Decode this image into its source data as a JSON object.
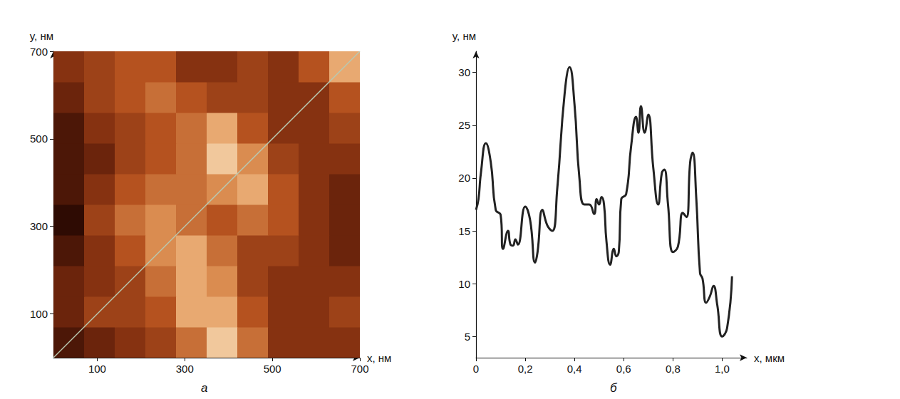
{
  "chart_data": [
    {
      "type": "heatmap",
      "panel_label": "а",
      "x_label": "x, нм",
      "y_label": "y, нм",
      "xlim": [
        0,
        700
      ],
      "ylim": [
        0,
        700
      ],
      "xticks": [
        100,
        300,
        500,
        700
      ],
      "yticks": [
        100,
        300,
        500,
        700
      ],
      "x": [
        35,
        105,
        175,
        245,
        315,
        385,
        455,
        525,
        595,
        665
      ],
      "y": [
        35,
        105,
        175,
        245,
        315,
        385,
        455,
        525,
        595,
        665
      ],
      "cells": [
        [
          1,
          2,
          3,
          4,
          6,
          9,
          6,
          3,
          3,
          3
        ],
        [
          2,
          4,
          4,
          5,
          8,
          8,
          5,
          3,
          3,
          4
        ],
        [
          2,
          3,
          4,
          6,
          8,
          7,
          4,
          3,
          3,
          3
        ],
        [
          1,
          3,
          5,
          7,
          8,
          6,
          4,
          4,
          3,
          2
        ],
        [
          0,
          4,
          6,
          7,
          6,
          5,
          6,
          5,
          3,
          2
        ],
        [
          1,
          3,
          5,
          6,
          6,
          7,
          8,
          5,
          3,
          2
        ],
        [
          1,
          2,
          4,
          5,
          6,
          9,
          7,
          4,
          3,
          3
        ],
        [
          1,
          3,
          4,
          5,
          6,
          8,
          5,
          3,
          3,
          4
        ],
        [
          2,
          4,
          5,
          6,
          5,
          4,
          4,
          3,
          3,
          5
        ],
        [
          3,
          4,
          5,
          5,
          3,
          3,
          4,
          3,
          5,
          8
        ]
      ],
      "color_range": [
        0,
        10
      ],
      "profile_line": {
        "x": [
          0,
          700
        ],
        "y": [
          0,
          700
        ],
        "color": "#b8c8b0"
      },
      "grid": false
    },
    {
      "type": "line",
      "panel_label": "б",
      "x_label": "x, мкм",
      "y_label": "y, нм",
      "xlim": [
        0,
        1.1
      ],
      "ylim": [
        3,
        32
      ],
      "xticks": [
        0,
        {
          "value": 0.2,
          "label": "0,2"
        },
        {
          "value": 0.4,
          "label": "0,4"
        },
        {
          "value": 0.6,
          "label": "0,6"
        },
        {
          "value": 0.8,
          "label": "0,8"
        },
        {
          "value": 1.0,
          "label": "1,0"
        }
      ],
      "yticks": [
        5,
        10,
        15,
        20,
        25,
        30
      ],
      "x": [
        0,
        0.01,
        0.02,
        0.04,
        0.06,
        0.08,
        0.1,
        0.11,
        0.13,
        0.14,
        0.15,
        0.16,
        0.17,
        0.2,
        0.22,
        0.24,
        0.25,
        0.27,
        0.29,
        0.31,
        0.33,
        0.36,
        0.38,
        0.4,
        0.42,
        0.44,
        0.46,
        0.48,
        0.49,
        0.5,
        0.51,
        0.52,
        0.53,
        0.545,
        0.56,
        0.57,
        0.58,
        0.59,
        0.61,
        0.63,
        0.65,
        0.66,
        0.67,
        0.685,
        0.7,
        0.72,
        0.74,
        0.755,
        0.765,
        0.78,
        0.8,
        0.82,
        0.84,
        0.855,
        0.87,
        0.88,
        0.895,
        0.91,
        0.92,
        0.935,
        0.95,
        0.965,
        0.98,
        1.0,
        1.02,
        1.04
      ],
      "values": [
        17,
        18,
        20.5,
        23.3,
        21.5,
        17,
        16.5,
        13.3,
        15,
        13.7,
        13.6,
        14.2,
        13.7,
        17.3,
        16,
        12,
        13,
        17,
        15.5,
        15,
        19,
        28,
        30.5,
        27,
        20,
        17.5,
        17.5,
        16.6,
        18,
        17.5,
        18.2,
        17.5,
        14,
        11.8,
        13.3,
        12.6,
        13,
        18,
        18.5,
        23,
        25.8,
        24.3,
        26.8,
        24.3,
        26,
        21,
        17.5,
        20.5,
        20.8,
        17.5,
        13,
        13.5,
        16.7,
        16.3,
        21.5,
        22.4,
        18,
        11,
        10.5,
        8.2,
        8.8,
        9.8,
        8,
        5,
        5.8,
        10.7
      ],
      "color": "#222222",
      "grid": false
    }
  ]
}
